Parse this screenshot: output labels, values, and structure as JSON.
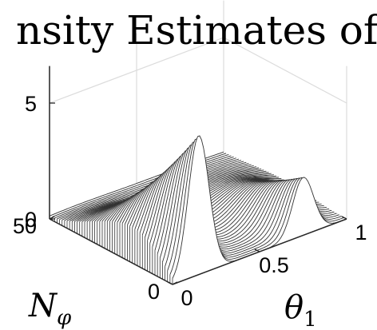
{
  "chart_data": {
    "type": "line",
    "view": "3d-waterfall",
    "title": "nsity Estimates of π",
    "title_subscript": "n",
    "xlabel": "θ",
    "xlabel_subscript": "1",
    "ylabel": "N",
    "ylabel_subscript": "φ",
    "x_ticks": [
      "0",
      "0.5",
      "1"
    ],
    "y_ticks": [
      "0",
      "50"
    ],
    "z_ticks": [
      "0",
      "5"
    ],
    "xlim": [
      0,
      1
    ],
    "ylim": [
      0,
      50
    ],
    "zlim": [
      0,
      6
    ],
    "grid": true,
    "num_curves": 50,
    "peaks": [
      {
        "x": 0.15,
        "front_height": 0.15,
        "back_height": 6.0,
        "front_width": 0.25,
        "back_width": 0.06
      },
      {
        "x": 0.75,
        "front_height": 0.1,
        "back_height": 2.5,
        "front_width": 0.25,
        "back_width": 0.06
      }
    ],
    "line_color": "#333333",
    "fill_color": "#ffffff",
    "axis_color": "#262626",
    "grid_color": "#dcdcdc"
  }
}
